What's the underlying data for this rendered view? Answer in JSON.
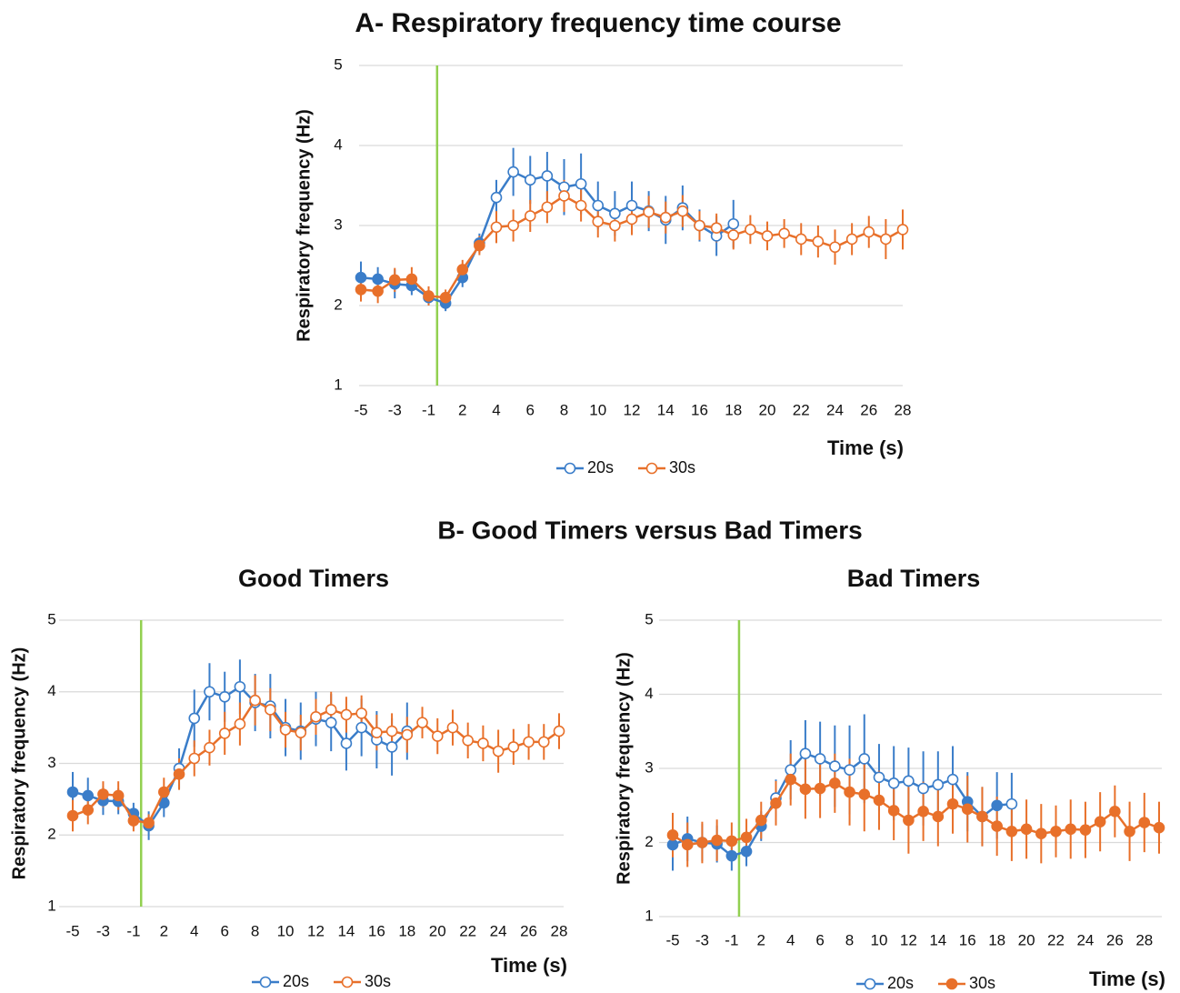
{
  "panel_b_title": "B- Good Timers versus Bad Timers",
  "chart_data": [
    {
      "type": "line",
      "title": "A- Respiratory frequency time course",
      "y_label": "Respiratory frequency (Hz)",
      "x_label": "Time (s)",
      "categories": [
        "-5",
        null,
        "-3",
        null,
        "-1",
        null,
        "2",
        null,
        "4",
        null,
        "6",
        null,
        "8",
        null,
        "10",
        null,
        "12",
        null,
        "14",
        null,
        "16",
        null,
        "18",
        null,
        "20",
        null,
        "22",
        null,
        "24",
        null,
        "26",
        null,
        "28"
      ],
      "ylim": [
        1,
        5
      ],
      "yticks": [
        1,
        2,
        3,
        4,
        5
      ],
      "grid": true,
      "event_line_index": 4.5,
      "event_line_color": "#92d050",
      "series": [
        {
          "name": "20s",
          "color": "#3a7dc9",
          "legend_marker": "open",
          "values": [
            2.35,
            2.33,
            2.27,
            2.25,
            2.1,
            2.03,
            2.35,
            2.78,
            3.35,
            3.67,
            3.57,
            3.62,
            3.48,
            3.52,
            3.25,
            3.15,
            3.25,
            3.18,
            3.07,
            3.22,
            3.0,
            2.87,
            3.02,
            null,
            null,
            null,
            null,
            null,
            null,
            null,
            null,
            null,
            null
          ],
          "errors": [
            0.2,
            0.15,
            0.18,
            0.12,
            0.1,
            0.1,
            0.12,
            0.12,
            0.22,
            0.3,
            0.3,
            0.3,
            0.35,
            0.38,
            0.3,
            0.28,
            0.3,
            0.25,
            0.3,
            0.28,
            0.2,
            0.25,
            0.3,
            null,
            null,
            null,
            null,
            null,
            null,
            null,
            null,
            null,
            null
          ],
          "filled": [
            true,
            true,
            true,
            true,
            true,
            true,
            true,
            true,
            false,
            false,
            false,
            false,
            false,
            false,
            false,
            false,
            false,
            false,
            false,
            false,
            false,
            false,
            false,
            null,
            null,
            null,
            null,
            null,
            null,
            null,
            null,
            null,
            null
          ]
        },
        {
          "name": "30s",
          "color": "#e8702a",
          "legend_marker": "open",
          "values": [
            2.2,
            2.18,
            2.32,
            2.33,
            2.12,
            2.1,
            2.45,
            2.75,
            2.98,
            3.0,
            3.12,
            3.23,
            3.37,
            3.25,
            3.05,
            3.0,
            3.08,
            3.17,
            3.1,
            3.18,
            3.0,
            2.97,
            2.88,
            2.95,
            2.87,
            2.9,
            2.83,
            2.8,
            2.73,
            2.83,
            2.92,
            2.83,
            2.95
          ],
          "errors": [
            0.15,
            0.15,
            0.15,
            0.15,
            0.12,
            0.1,
            0.12,
            0.12,
            0.2,
            0.2,
            0.2,
            0.2,
            0.2,
            0.2,
            0.2,
            0.2,
            0.2,
            0.2,
            0.2,
            0.2,
            0.18,
            0.18,
            0.18,
            0.18,
            0.18,
            0.18,
            0.2,
            0.2,
            0.22,
            0.2,
            0.2,
            0.25,
            0.25
          ],
          "filled": [
            true,
            true,
            true,
            true,
            true,
            true,
            true,
            true,
            false,
            false,
            false,
            false,
            false,
            false,
            false,
            false,
            false,
            false,
            false,
            false,
            false,
            false,
            false,
            false,
            false,
            false,
            false,
            false,
            false,
            false,
            false,
            false,
            false
          ]
        }
      ]
    },
    {
      "type": "line",
      "title": "Good Timers",
      "y_label": "Respiratory frequency (Hz)",
      "x_label": "Time (s)",
      "categories": [
        "-5",
        null,
        "-3",
        null,
        "-1",
        null,
        "2",
        null,
        "4",
        null,
        "6",
        null,
        "8",
        null,
        "10",
        null,
        "12",
        null,
        "14",
        null,
        "16",
        null,
        "18",
        null,
        "20",
        null,
        "22",
        null,
        "24",
        null,
        "26",
        null,
        "28"
      ],
      "ylim": [
        1,
        5
      ],
      "yticks": [
        1,
        2,
        3,
        4,
        5
      ],
      "grid": true,
      "event_line_index": 4.5,
      "event_line_color": "#92d050",
      "series": [
        {
          "name": "20s",
          "color": "#3a7dc9",
          "legend_marker": "open",
          "values": [
            2.6,
            2.55,
            2.48,
            2.47,
            2.3,
            2.13,
            2.45,
            2.93,
            3.63,
            4.0,
            3.93,
            4.07,
            3.85,
            3.8,
            3.5,
            3.45,
            3.62,
            3.57,
            3.28,
            3.5,
            3.33,
            3.23,
            3.45,
            null,
            null,
            null,
            null,
            null,
            null,
            null,
            null,
            null,
            null
          ],
          "errors": [
            0.28,
            0.25,
            0.2,
            0.18,
            0.15,
            0.2,
            0.2,
            0.28,
            0.4,
            0.4,
            0.35,
            0.38,
            0.4,
            0.45,
            0.4,
            0.4,
            0.38,
            0.4,
            0.38,
            0.4,
            0.4,
            0.4,
            0.4,
            null,
            null,
            null,
            null,
            null,
            null,
            null,
            null,
            null,
            null
          ],
          "filled": [
            true,
            true,
            true,
            true,
            true,
            true,
            true,
            false,
            false,
            false,
            false,
            false,
            false,
            false,
            false,
            false,
            false,
            false,
            false,
            false,
            false,
            false,
            false,
            null,
            null,
            null,
            null,
            null,
            null,
            null,
            null,
            null,
            null
          ]
        },
        {
          "name": "30s",
          "color": "#e8702a",
          "legend_marker": "open",
          "values": [
            2.27,
            2.35,
            2.57,
            2.55,
            2.2,
            2.17,
            2.6,
            2.85,
            3.07,
            3.22,
            3.42,
            3.55,
            3.88,
            3.75,
            3.47,
            3.43,
            3.65,
            3.75,
            3.68,
            3.7,
            3.43,
            3.45,
            3.4,
            3.57,
            3.38,
            3.5,
            3.32,
            3.28,
            3.17,
            3.23,
            3.3,
            3.3,
            3.45
          ],
          "errors": [
            0.22,
            0.2,
            0.18,
            0.2,
            0.15,
            0.12,
            0.2,
            0.22,
            0.25,
            0.25,
            0.3,
            0.3,
            0.35,
            0.3,
            0.25,
            0.25,
            0.25,
            0.25,
            0.25,
            0.25,
            0.25,
            0.25,
            0.25,
            0.22,
            0.25,
            0.25,
            0.25,
            0.25,
            0.3,
            0.25,
            0.25,
            0.25,
            0.25
          ],
          "filled": [
            true,
            true,
            true,
            true,
            true,
            true,
            true,
            true,
            false,
            false,
            false,
            false,
            false,
            false,
            false,
            false,
            false,
            false,
            false,
            false,
            false,
            false,
            false,
            false,
            false,
            false,
            false,
            false,
            false,
            false,
            false,
            false,
            false
          ]
        }
      ]
    },
    {
      "type": "line",
      "title": "Bad Timers",
      "y_label": "Respiratory frequency (Hz)",
      "x_label": "Time (s)",
      "categories": [
        "-5",
        null,
        "-3",
        null,
        "-1",
        null,
        "2",
        null,
        "4",
        null,
        "6",
        null,
        "8",
        null,
        "10",
        null,
        "12",
        null,
        "14",
        null,
        "16",
        null,
        "18",
        null,
        "20",
        null,
        "22",
        null,
        "24",
        null,
        "26",
        null,
        "28",
        null
      ],
      "ylim": [
        1,
        5
      ],
      "yticks": [
        1,
        2,
        3,
        4,
        5
      ],
      "grid": true,
      "event_line_index": 4.5,
      "event_line_color": "#92d050",
      "series": [
        {
          "name": "20s",
          "color": "#3a7dc9",
          "legend_marker": "open",
          "values": [
            1.97,
            2.05,
            2.0,
            1.98,
            1.82,
            1.88,
            2.22,
            2.6,
            2.98,
            3.2,
            3.13,
            3.03,
            2.98,
            3.13,
            2.88,
            2.8,
            2.83,
            2.73,
            2.78,
            2.85,
            2.55,
            2.35,
            2.5,
            2.52,
            null,
            null,
            null,
            null,
            null,
            null,
            null,
            null,
            null,
            null
          ],
          "errors": [
            0.35,
            0.3,
            0.25,
            0.25,
            0.2,
            0.2,
            0.2,
            0.25,
            0.4,
            0.45,
            0.5,
            0.55,
            0.6,
            0.6,
            0.45,
            0.5,
            0.45,
            0.5,
            0.45,
            0.45,
            0.4,
            0.4,
            0.45,
            0.42,
            null,
            null,
            null,
            null,
            null,
            null,
            null,
            null,
            null,
            null
          ],
          "filled": [
            true,
            true,
            true,
            true,
            true,
            true,
            true,
            false,
            false,
            false,
            false,
            false,
            false,
            false,
            false,
            false,
            false,
            false,
            false,
            false,
            true,
            false,
            true,
            false,
            null,
            null,
            null,
            null,
            null,
            null,
            null,
            null,
            null,
            null
          ]
        },
        {
          "name": "30s",
          "color": "#e8702a",
          "legend_marker": "filled",
          "values": [
            2.1,
            1.97,
            2.0,
            2.03,
            2.02,
            2.07,
            2.3,
            2.53,
            2.85,
            2.72,
            2.73,
            2.8,
            2.68,
            2.65,
            2.57,
            2.43,
            2.3,
            2.42,
            2.35,
            2.52,
            2.45,
            2.35,
            2.22,
            2.15,
            2.18,
            2.12,
            2.15,
            2.18,
            2.17,
            2.28,
            2.42,
            2.15,
            2.27,
            2.2
          ],
          "errors": [
            0.3,
            0.3,
            0.28,
            0.28,
            0.25,
            0.25,
            0.25,
            0.3,
            0.35,
            0.4,
            0.4,
            0.4,
            0.45,
            0.5,
            0.4,
            0.4,
            0.45,
            0.4,
            0.4,
            0.4,
            0.45,
            0.4,
            0.4,
            0.4,
            0.4,
            0.4,
            0.35,
            0.4,
            0.38,
            0.4,
            0.35,
            0.4,
            0.4,
            0.35
          ],
          "filled": [
            true,
            true,
            true,
            true,
            true,
            true,
            true,
            true,
            true,
            true,
            true,
            true,
            true,
            true,
            true,
            true,
            true,
            true,
            true,
            true,
            true,
            true,
            true,
            true,
            true,
            true,
            true,
            true,
            true,
            true,
            true,
            true,
            true,
            true
          ]
        }
      ]
    }
  ]
}
